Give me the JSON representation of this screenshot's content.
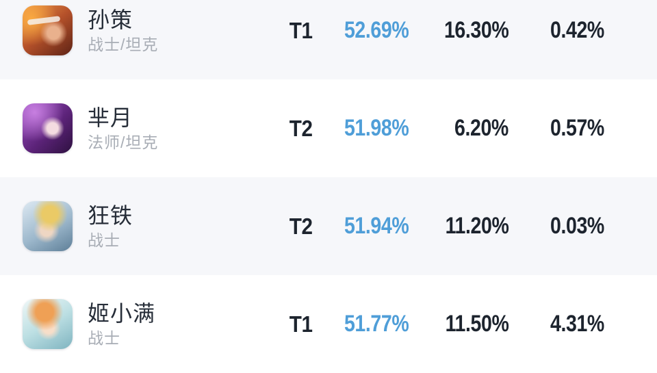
{
  "colors": {
    "win_rate_blue": "#4f9ed8",
    "text_dark": "#1d242e",
    "role_gray": "#a8adb5",
    "row_alt_bg": "#f6f7fa",
    "row_bg": "#ffffff"
  },
  "table": {
    "rows": [
      {
        "name": "孙策",
        "role": "战士/坦克",
        "tier": "T1",
        "win_rate": "52.69%",
        "pick_rate": "16.30%",
        "ban_rate": "0.42%",
        "avatar_id": "sunce"
      },
      {
        "name": "芈月",
        "role": "法师/坦克",
        "tier": "T2",
        "win_rate": "51.98%",
        "pick_rate": "6.20%",
        "ban_rate": "0.57%",
        "avatar_id": "miyue"
      },
      {
        "name": "狂铁",
        "role": "战士",
        "tier": "T2",
        "win_rate": "51.94%",
        "pick_rate": "11.20%",
        "ban_rate": "0.03%",
        "avatar_id": "kuangtie"
      },
      {
        "name": "姬小满",
        "role": "战士",
        "tier": "T1",
        "win_rate": "51.77%",
        "pick_rate": "11.50%",
        "ban_rate": "4.31%",
        "avatar_id": "jixiaoman"
      }
    ]
  }
}
